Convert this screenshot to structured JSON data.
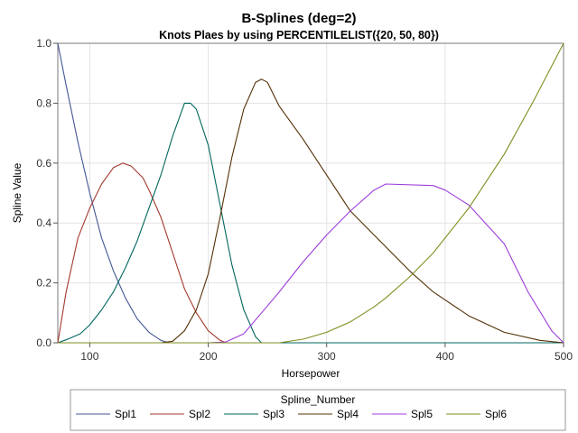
{
  "chart_data": {
    "type": "line",
    "title": "B-Splines (deg=2)",
    "subtitle": "Knots Plaes by using PERCENTILELIST({20, 50, 80})",
    "xlabel": "Horsepower",
    "ylabel": "Spline Value",
    "xlim": [
      73,
      500
    ],
    "ylim": [
      0,
      1
    ],
    "xticks": [
      100,
      200,
      300,
      400,
      500
    ],
    "yticks": [
      0.0,
      0.2,
      0.4,
      0.6,
      0.8,
      1.0
    ],
    "ytick_labels": [
      "0.0",
      "0.2",
      "0.4",
      "0.6",
      "0.8",
      "1.0"
    ],
    "grid": true,
    "legend": {
      "title": "Spline_Number",
      "position": "bottom"
    },
    "series": [
      {
        "name": "Spl1",
        "color": "#445694",
        "points": [
          [
            73,
            1.0
          ],
          [
            80,
            0.86
          ],
          [
            90,
            0.67
          ],
          [
            100,
            0.5
          ],
          [
            110,
            0.35
          ],
          [
            120,
            0.24
          ],
          [
            130,
            0.15
          ],
          [
            140,
            0.08
          ],
          [
            150,
            0.035
          ],
          [
            160,
            0.008
          ],
          [
            167,
            0.0
          ],
          [
            500,
            0.0
          ]
        ]
      },
      {
        "name": "Spl2",
        "color": "#A23A2E",
        "points": [
          [
            73,
            0.0
          ],
          [
            80,
            0.17
          ],
          [
            90,
            0.35
          ],
          [
            100,
            0.45
          ],
          [
            110,
            0.53
          ],
          [
            120,
            0.585
          ],
          [
            128,
            0.6
          ],
          [
            135,
            0.59
          ],
          [
            145,
            0.55
          ],
          [
            150,
            0.51
          ],
          [
            160,
            0.42
          ],
          [
            170,
            0.3
          ],
          [
            180,
            0.18
          ],
          [
            190,
            0.1
          ],
          [
            200,
            0.04
          ],
          [
            210,
            0.008
          ],
          [
            215,
            0.0
          ],
          [
            500,
            0.0
          ]
        ]
      },
      {
        "name": "Spl3",
        "color": "#01665E",
        "points": [
          [
            73,
            0.0
          ],
          [
            80,
            0.01
          ],
          [
            92,
            0.03
          ],
          [
            100,
            0.06
          ],
          [
            110,
            0.11
          ],
          [
            120,
            0.17
          ],
          [
            130,
            0.25
          ],
          [
            140,
            0.34
          ],
          [
            150,
            0.45
          ],
          [
            160,
            0.56
          ],
          [
            170,
            0.69
          ],
          [
            180,
            0.8
          ],
          [
            185,
            0.8
          ],
          [
            190,
            0.78
          ],
          [
            200,
            0.66
          ],
          [
            210,
            0.46
          ],
          [
            220,
            0.26
          ],
          [
            230,
            0.11
          ],
          [
            240,
            0.02
          ],
          [
            245,
            0.0
          ],
          [
            500,
            0.0
          ]
        ]
      },
      {
        "name": "Spl4",
        "color": "#543005",
        "points": [
          [
            73,
            0.0
          ],
          [
            160,
            0.0
          ],
          [
            170,
            0.005
          ],
          [
            180,
            0.04
          ],
          [
            190,
            0.11
          ],
          [
            200,
            0.23
          ],
          [
            210,
            0.42
          ],
          [
            220,
            0.62
          ],
          [
            230,
            0.78
          ],
          [
            240,
            0.87
          ],
          [
            245,
            0.88
          ],
          [
            250,
            0.87
          ],
          [
            260,
            0.79
          ],
          [
            280,
            0.68
          ],
          [
            300,
            0.56
          ],
          [
            320,
            0.44
          ],
          [
            350,
            0.32
          ],
          [
            370,
            0.24
          ],
          [
            390,
            0.17
          ],
          [
            420,
            0.09
          ],
          [
            450,
            0.035
          ],
          [
            480,
            0.008
          ],
          [
            500,
            0.0
          ]
        ]
      },
      {
        "name": "Spl5",
        "color": "#9D3CDB",
        "points": [
          [
            73,
            0.0
          ],
          [
            200,
            0.0
          ],
          [
            215,
            0.003
          ],
          [
            230,
            0.03
          ],
          [
            245,
            0.1
          ],
          [
            260,
            0.17
          ],
          [
            280,
            0.27
          ],
          [
            300,
            0.36
          ],
          [
            320,
            0.44
          ],
          [
            340,
            0.51
          ],
          [
            350,
            0.53
          ],
          [
            390,
            0.525
          ],
          [
            400,
            0.51
          ],
          [
            420,
            0.46
          ],
          [
            450,
            0.33
          ],
          [
            470,
            0.17
          ],
          [
            490,
            0.04
          ],
          [
            500,
            0.0
          ]
        ]
      },
      {
        "name": "Spl6",
        "color": "#7F8E1F",
        "points": [
          [
            73,
            0.0
          ],
          [
            260,
            0.0
          ],
          [
            280,
            0.012
          ],
          [
            300,
            0.035
          ],
          [
            320,
            0.07
          ],
          [
            340,
            0.12
          ],
          [
            350,
            0.15
          ],
          [
            370,
            0.22
          ],
          [
            390,
            0.3
          ],
          [
            420,
            0.45
          ],
          [
            450,
            0.63
          ],
          [
            475,
            0.81
          ],
          [
            500,
            1.0
          ]
        ]
      }
    ]
  }
}
